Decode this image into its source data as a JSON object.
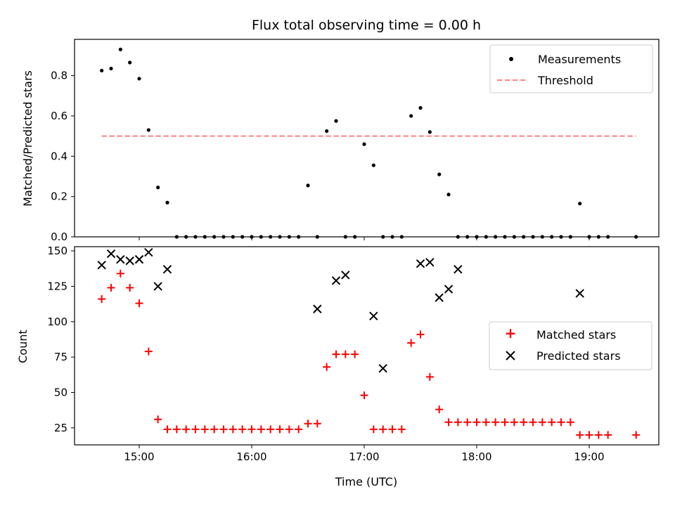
{
  "chart_data": [
    {
      "type": "scatter",
      "title": "Flux total observing time = 0.00 h",
      "xlabel": "",
      "ylabel": "Matched/Predicted stars",
      "ylim": [
        0,
        0.98
      ],
      "yticks": [
        0.0,
        0.2,
        0.4,
        0.6,
        0.8
      ],
      "ytick_labels": [
        "0.0",
        "0.2",
        "0.4",
        "0.6",
        "0.8"
      ],
      "legend_position": "top-right",
      "series": [
        {
          "name": "Measurements",
          "kind": "points",
          "color": "#000000",
          "x": [
            "14:40",
            "14:45",
            "14:50",
            "14:55",
            "15:00",
            "15:05",
            "15:10",
            "15:15",
            "15:20",
            "15:25",
            "15:30",
            "15:35",
            "15:40",
            "15:45",
            "15:50",
            "15:55",
            "16:00",
            "16:05",
            "16:10",
            "16:15",
            "16:20",
            "16:25",
            "16:30",
            "16:35",
            "16:40",
            "16:45",
            "16:50",
            "16:55",
            "17:00",
            "17:05",
            "17:10",
            "17:15",
            "17:20",
            "17:25",
            "17:30",
            "17:35",
            "17:40",
            "17:45",
            "17:50",
            "17:55",
            "18:00",
            "18:05",
            "18:10",
            "18:15",
            "18:20",
            "18:25",
            "18:30",
            "18:35",
            "18:40",
            "18:45",
            "18:50",
            "18:55",
            "19:00",
            "19:05",
            "19:10",
            "19:25"
          ],
          "y": [
            0.825,
            0.835,
            0.93,
            0.865,
            0.785,
            0.53,
            0.245,
            0.17,
            0,
            0,
            0,
            0,
            0,
            0,
            0,
            0,
            0,
            0,
            0,
            0,
            0,
            0,
            0.255,
            0,
            0.525,
            0.575,
            0,
            0,
            0.46,
            0.355,
            0,
            0,
            0,
            0.6,
            0.64,
            0.52,
            0.31,
            0.21,
            0,
            0,
            0,
            0,
            0,
            0,
            0,
            0,
            0,
            0,
            0,
            0,
            0,
            0.165,
            0,
            0,
            0,
            0
          ]
        },
        {
          "name": "Threshold",
          "kind": "dashed-line",
          "color": "#ff7f7f",
          "x": [
            "14:40",
            "19:25"
          ],
          "y": [
            0.5,
            0.5
          ]
        }
      ]
    },
    {
      "type": "scatter",
      "title": "",
      "xlabel": "Time (UTC)",
      "ylabel": "Count",
      "ylim": [
        13,
        153
      ],
      "yticks": [
        25,
        50,
        75,
        100,
        125,
        150
      ],
      "ytick_labels": [
        "25",
        "50",
        "75",
        "100",
        "125",
        "150"
      ],
      "xticks": [
        "15:00",
        "16:00",
        "17:00",
        "18:00",
        "19:00"
      ],
      "xtick_labels": [
        "15:00",
        "16:00",
        "17:00",
        "18:00",
        "19:00"
      ],
      "legend_position": "center-right",
      "series": [
        {
          "name": "Matched stars",
          "marker": "plus",
          "color": "#ff0000",
          "x": [
            "14:40",
            "14:45",
            "14:50",
            "14:55",
            "15:00",
            "15:05",
            "15:10",
            "15:15",
            "15:20",
            "15:25",
            "15:30",
            "15:35",
            "15:40",
            "15:45",
            "15:50",
            "15:55",
            "16:00",
            "16:05",
            "16:10",
            "16:15",
            "16:20",
            "16:25",
            "16:30",
            "16:35",
            "16:40",
            "16:45",
            "16:50",
            "16:55",
            "17:00",
            "17:05",
            "17:10",
            "17:15",
            "17:20",
            "17:25",
            "17:30",
            "17:35",
            "17:40",
            "17:45",
            "17:50",
            "17:55",
            "18:00",
            "18:05",
            "18:10",
            "18:15",
            "18:20",
            "18:25",
            "18:30",
            "18:35",
            "18:40",
            "18:45",
            "18:50",
            "18:55",
            "19:00",
            "19:05",
            "19:10",
            "19:25"
          ],
          "y": [
            116,
            124,
            134,
            124,
            113,
            79,
            31,
            24,
            24,
            24,
            24,
            24,
            24,
            24,
            24,
            24,
            24,
            24,
            24,
            24,
            24,
            24,
            28,
            28,
            68,
            77,
            77,
            77,
            48,
            24,
            24,
            24,
            24,
            85,
            91,
            61,
            38,
            29,
            29,
            29,
            29,
            29,
            29,
            29,
            29,
            29,
            29,
            29,
            29,
            29,
            29,
            20,
            20,
            20,
            20,
            20
          ]
        },
        {
          "name": "Predicted stars",
          "marker": "x",
          "color": "#000000",
          "x": [
            "14:40",
            "14:45",
            "14:50",
            "14:55",
            "15:00",
            "15:05",
            "15:10",
            "15:15",
            "16:35",
            "16:45",
            "16:50",
            "17:05",
            "17:10",
            "17:30",
            "17:35",
            "17:40",
            "17:45",
            "17:50",
            "18:55"
          ],
          "y": [
            140,
            148,
            144,
            143,
            144,
            149,
            125,
            137,
            109,
            129,
            133,
            104,
            67,
            141,
            142,
            117,
            123,
            137,
            120
          ]
        }
      ]
    }
  ]
}
